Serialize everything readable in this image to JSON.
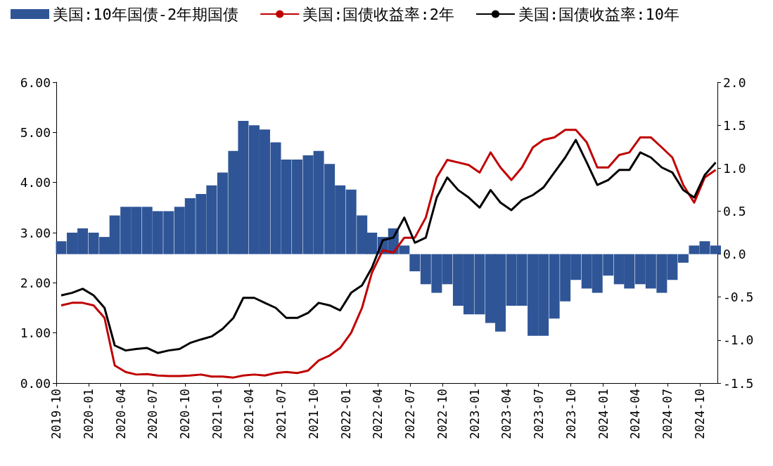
{
  "chart_data": {
    "type": "line",
    "legend": "top left",
    "x": [
      "2019-10-15",
      "2019-11-15",
      "2019-12-15",
      "2020-01-15",
      "2020-02-15",
      "2020-03-15",
      "2020-04-15",
      "2020-05-15",
      "2020-06-15",
      "2020-07-15",
      "2020-08-15",
      "2020-09-15",
      "2020-10-15",
      "2020-11-15",
      "2020-12-15",
      "2021-01-15",
      "2021-02-15",
      "2021-03-15",
      "2021-04-15",
      "2021-05-15",
      "2021-06-15",
      "2021-07-15",
      "2021-08-15",
      "2021-09-15",
      "2021-10-15",
      "2021-11-15",
      "2021-12-15",
      "2022-01-15",
      "2022-02-15",
      "2022-03-15",
      "2022-04-15",
      "2022-05-15",
      "2022-06-15",
      "2022-07-15",
      "2022-08-15",
      "2022-09-15",
      "2022-10-15",
      "2022-11-15",
      "2022-12-15",
      "2023-01-15",
      "2023-02-15",
      "2023-03-15",
      "2023-04-15",
      "2023-05-15",
      "2023-06-15",
      "2023-07-15",
      "2023-08-15",
      "2023-09-15",
      "2023-10-15",
      "2023-11-15",
      "2023-12-15",
      "2024-01-15",
      "2024-02-15",
      "2024-03-15",
      "2024-04-15",
      "2024-05-15",
      "2024-06-15",
      "2024-07-15",
      "2024-08-15",
      "2024-09-15",
      "2024-10-15",
      "2024-11-15"
    ],
    "series": [
      {
        "name": "美国:10年国债-2年期国债",
        "type": "bar",
        "axis": "y2",
        "color": "#2f5597",
        "values": [
          0.15,
          0.25,
          0.3,
          0.25,
          0.2,
          0.45,
          0.55,
          0.55,
          0.55,
          0.5,
          0.5,
          0.55,
          0.65,
          0.7,
          0.8,
          0.95,
          1.2,
          1.55,
          1.5,
          1.45,
          1.3,
          1.1,
          1.1,
          1.15,
          1.2,
          1.05,
          0.8,
          0.75,
          0.45,
          0.25,
          0.2,
          0.3,
          0.1,
          -0.2,
          -0.35,
          -0.45,
          -0.35,
          -0.6,
          -0.7,
          -0.7,
          -0.8,
          -0.9,
          -0.6,
          -0.6,
          -0.95,
          -0.95,
          -0.75,
          -0.55,
          -0.3,
          -0.4,
          -0.45,
          -0.25,
          -0.35,
          -0.4,
          -0.35,
          -0.4,
          -0.45,
          -0.3,
          -0.1,
          0.1,
          0.15,
          0.1
        ]
      },
      {
        "name": "美国:国债收益率:2年",
        "color": "#c00000",
        "values": [
          1.55,
          1.6,
          1.6,
          1.55,
          1.3,
          0.35,
          0.22,
          0.17,
          0.18,
          0.15,
          0.14,
          0.14,
          0.15,
          0.17,
          0.13,
          0.13,
          0.11,
          0.15,
          0.17,
          0.15,
          0.2,
          0.22,
          0.2,
          0.25,
          0.45,
          0.55,
          0.7,
          1.0,
          1.5,
          2.2,
          2.65,
          2.6,
          2.9,
          2.9,
          3.3,
          4.1,
          4.45,
          4.4,
          4.35,
          4.2,
          4.6,
          4.3,
          4.05,
          4.3,
          4.7,
          4.85,
          4.9,
          5.05,
          5.05,
          4.8,
          4.3,
          4.3,
          4.55,
          4.6,
          4.9,
          4.9,
          4.7,
          4.5,
          3.95,
          3.6,
          4.1,
          4.25
        ]
      },
      {
        "name": "美国:国债收益率:10年",
        "color": "#000000",
        "values": [
          1.75,
          1.8,
          1.88,
          1.75,
          1.5,
          0.75,
          0.65,
          0.68,
          0.7,
          0.6,
          0.65,
          0.68,
          0.8,
          0.87,
          0.93,
          1.08,
          1.3,
          1.7,
          1.7,
          1.6,
          1.5,
          1.3,
          1.3,
          1.4,
          1.6,
          1.55,
          1.45,
          1.8,
          1.95,
          2.3,
          2.85,
          2.9,
          3.3,
          2.8,
          2.9,
          3.7,
          4.1,
          3.85,
          3.7,
          3.5,
          3.85,
          3.6,
          3.45,
          3.65,
          3.75,
          3.9,
          4.2,
          4.5,
          4.85,
          4.4,
          3.95,
          4.05,
          4.25,
          4.25,
          4.6,
          4.5,
          4.3,
          4.2,
          3.85,
          3.7,
          4.15,
          4.4
        ]
      }
    ],
    "xlim": [
      "2019-10-01",
      "2024-11-20"
    ],
    "xticks": [
      "2019-10",
      "2020-01",
      "2020-04",
      "2020-07",
      "2020-10",
      "2021-01",
      "2021-04",
      "2021-07",
      "2021-10",
      "2022-01",
      "2022-04",
      "2022-07",
      "2022-10",
      "2023-01",
      "2023-04",
      "2023-07",
      "2023-10",
      "2024-01",
      "2024-04",
      "2024-07",
      "2024-10"
    ],
    "ylim": [
      0,
      6
    ],
    "yticks": [
      {
        "value": 0,
        "label": "0.00"
      },
      {
        "value": 1,
        "label": "1.00"
      },
      {
        "value": 2,
        "label": "2.00"
      },
      {
        "value": 3,
        "label": "3.00"
      },
      {
        "value": 4,
        "label": "4.00"
      },
      {
        "value": 5,
        "label": "5.00"
      },
      {
        "value": 6,
        "label": "6.00"
      }
    ],
    "y2lim": [
      -1.5,
      2
    ],
    "y2ticks": [
      {
        "value": -1.5,
        "label": "-1.5"
      },
      {
        "value": -1,
        "label": "-1.0"
      },
      {
        "value": -0.5,
        "label": "-0.5"
      },
      {
        "value": 0,
        "label": "0.0"
      },
      {
        "value": 0.5,
        "label": "0.5"
      },
      {
        "value": 1,
        "label": "1.0"
      },
      {
        "value": 1.5,
        "label": "1.5"
      },
      {
        "value": 2,
        "label": "2.0"
      }
    ]
  }
}
